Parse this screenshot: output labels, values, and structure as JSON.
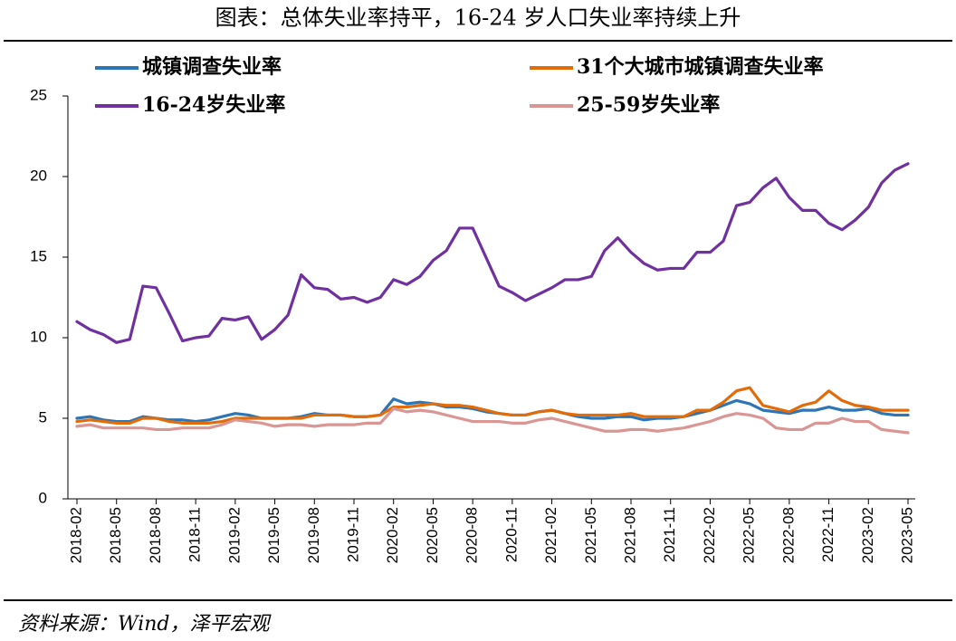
{
  "chart_data": {
    "type": "line",
    "title": "图表：总体失业率持平，16-24 岁人口失业率持续上升",
    "source": "资料来源：Wind，泽平宏观",
    "categories": [
      "2018-02",
      null,
      null,
      "2018-05",
      null,
      null,
      "2018-08",
      null,
      null,
      "2018-11",
      null,
      null,
      "2019-02",
      null,
      null,
      "2019-05",
      null,
      null,
      "2019-08",
      null,
      null,
      "2019-11",
      null,
      null,
      "2020-02",
      null,
      null,
      "2020-05",
      null,
      null,
      "2020-08",
      null,
      null,
      "2020-11",
      null,
      null,
      "2021-02",
      null,
      null,
      "2021-05",
      null,
      null,
      "2021-08",
      null,
      null,
      "2021-11",
      null,
      null,
      "2022-02",
      null,
      null,
      "2022-05",
      null,
      null,
      "2022-08",
      null,
      null,
      "2022-11",
      null,
      null,
      "2023-02",
      null,
      null,
      "2023-05"
    ],
    "series": [
      {
        "name": "城镇调查失业率",
        "color": "#2e75b6",
        "values": [
          5.0,
          5.1,
          4.9,
          4.8,
          4.8,
          5.1,
          5.0,
          4.9,
          4.9,
          4.8,
          4.9,
          5.1,
          5.3,
          5.2,
          5.0,
          5.0,
          5.0,
          5.1,
          5.3,
          5.2,
          5.2,
          5.1,
          5.1,
          5.2,
          6.2,
          5.9,
          6.0,
          5.9,
          5.7,
          5.7,
          5.6,
          5.4,
          5.3,
          5.2,
          5.2,
          5.4,
          5.5,
          5.3,
          5.1,
          5.0,
          5.0,
          5.1,
          5.1,
          4.9,
          5.0,
          5.0,
          5.1,
          5.3,
          5.5,
          5.8,
          6.1,
          5.9,
          5.5,
          5.4,
          5.3,
          5.5,
          5.5,
          5.7,
          5.5,
          5.5,
          5.6,
          5.3,
          5.2,
          5.2
        ]
      },
      {
        "name": "31个大城市城镇调查失业率",
        "color": "#e36c09",
        "values": [
          4.8,
          4.9,
          4.8,
          4.7,
          4.7,
          5.0,
          5.0,
          4.8,
          4.7,
          4.7,
          4.7,
          4.8,
          5.0,
          5.0,
          5.0,
          5.0,
          5.0,
          5.0,
          5.2,
          5.2,
          5.2,
          5.1,
          5.1,
          5.2,
          5.7,
          5.7,
          5.8,
          5.9,
          5.8,
          5.8,
          5.7,
          5.5,
          5.3,
          5.2,
          5.2,
          5.4,
          5.5,
          5.3,
          5.2,
          5.2,
          5.2,
          5.2,
          5.3,
          5.1,
          5.1,
          5.1,
          5.1,
          5.5,
          5.5,
          6.0,
          6.7,
          6.9,
          5.8,
          5.6,
          5.4,
          5.8,
          6.0,
          6.7,
          6.1,
          5.8,
          5.7,
          5.5,
          5.5,
          5.5
        ]
      },
      {
        "name": "16-24岁失业率",
        "color": "#7030a0",
        "values": [
          11.0,
          10.5,
          10.2,
          9.7,
          9.9,
          13.2,
          13.1,
          11.5,
          9.8,
          10.0,
          10.1,
          11.2,
          11.1,
          11.3,
          9.9,
          10.5,
          11.4,
          13.9,
          13.1,
          13.0,
          12.4,
          12.5,
          12.2,
          12.5,
          13.6,
          13.3,
          13.8,
          14.8,
          15.4,
          16.8,
          16.8,
          15.0,
          13.2,
          12.8,
          12.3,
          12.7,
          13.1,
          13.6,
          13.6,
          13.8,
          15.4,
          16.2,
          15.3,
          14.6,
          14.2,
          14.3,
          14.3,
          15.3,
          15.3,
          16.0,
          18.2,
          18.4,
          19.3,
          19.9,
          18.7,
          17.9,
          17.9,
          17.1,
          16.7,
          17.3,
          18.1,
          19.6,
          20.4,
          20.8
        ]
      },
      {
        "name": "25-59岁失业率",
        "color": "#d99694",
        "values": [
          4.5,
          4.6,
          4.4,
          4.4,
          4.4,
          4.4,
          4.3,
          4.3,
          4.4,
          4.4,
          4.4,
          4.6,
          4.9,
          4.8,
          4.7,
          4.5,
          4.6,
          4.6,
          4.5,
          4.6,
          4.6,
          4.6,
          4.7,
          4.7,
          5.6,
          5.4,
          5.5,
          5.4,
          5.2,
          5.0,
          4.8,
          4.8,
          4.8,
          4.7,
          4.7,
          4.9,
          5.0,
          4.8,
          4.6,
          4.4,
          4.2,
          4.2,
          4.3,
          4.3,
          4.2,
          4.3,
          4.4,
          4.6,
          4.8,
          5.1,
          5.3,
          5.2,
          5.0,
          4.4,
          4.3,
          4.3,
          4.7,
          4.7,
          5.0,
          4.8,
          4.8,
          4.3,
          4.2,
          4.1
        ]
      }
    ],
    "ylim": [
      0,
      25
    ],
    "yticks": [
      0,
      5,
      10,
      15,
      20,
      25
    ],
    "grid": false
  }
}
